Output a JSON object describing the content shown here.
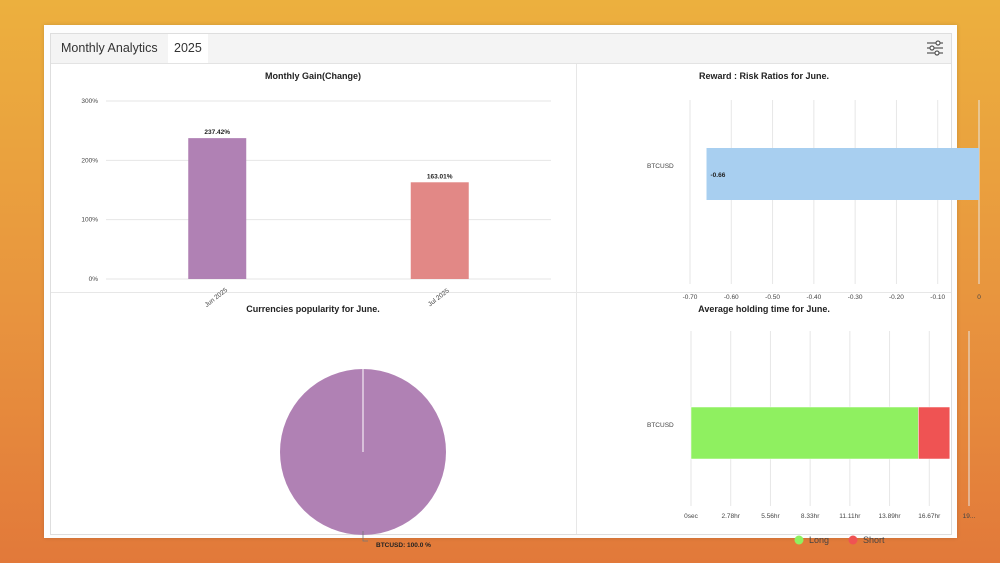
{
  "header": {
    "title": "Monthly Analytics",
    "year": "2025",
    "filter_icon": "sliders-icon"
  },
  "colors": {
    "purple": "#b081b4",
    "salmon": "#e28886",
    "blue": "#a8cff0",
    "green": "#8ff060",
    "red": "#ef5353"
  },
  "chart_data": [
    {
      "type": "bar",
      "title": "Monthly Gain(Change)",
      "categories": [
        "Jun 2025",
        "Jul 2025"
      ],
      "values": [
        237.42,
        163.01
      ],
      "value_labels": [
        "237.42%",
        "163.01%"
      ],
      "ylim": [
        0,
        300
      ],
      "yticks": [
        "0%",
        "100%",
        "200%",
        "300%"
      ],
      "grid": true
    },
    {
      "type": "bar",
      "orientation": "horizontal",
      "title": "Reward : Risk Ratios for June.",
      "categories": [
        "BTCUSD"
      ],
      "values": [
        -0.66
      ],
      "value_labels": [
        "-0.66"
      ],
      "xlim": [
        -0.7,
        0
      ],
      "xticks": [
        "-0.70",
        "-0.60",
        "-0.50",
        "-0.40",
        "-0.30",
        "-0.20",
        "-0.10",
        "0"
      ],
      "grid": true
    },
    {
      "type": "pie",
      "title": "Currencies popularity for June.",
      "slices": [
        {
          "label": "BTCUSD",
          "value": 100.0
        }
      ],
      "slice_label": "BTCUSD: 100.0 %"
    },
    {
      "type": "bar",
      "orientation": "horizontal",
      "stacked": true,
      "title": "Average holding time for June.",
      "categories": [
        "BTCUSD"
      ],
      "series": [
        {
          "name": "Long",
          "values": [
            15.9
          ]
        },
        {
          "name": "Short",
          "values": [
            2.2
          ]
        }
      ],
      "x_unit": "hr",
      "xlim": [
        0,
        19.44
      ],
      "xticks": [
        "0sec",
        "2.78hr",
        "5.56hr",
        "8.33hr",
        "11.11hr",
        "13.89hr",
        "16.67hr",
        "19..."
      ],
      "legend": "bottom",
      "grid": true
    }
  ]
}
